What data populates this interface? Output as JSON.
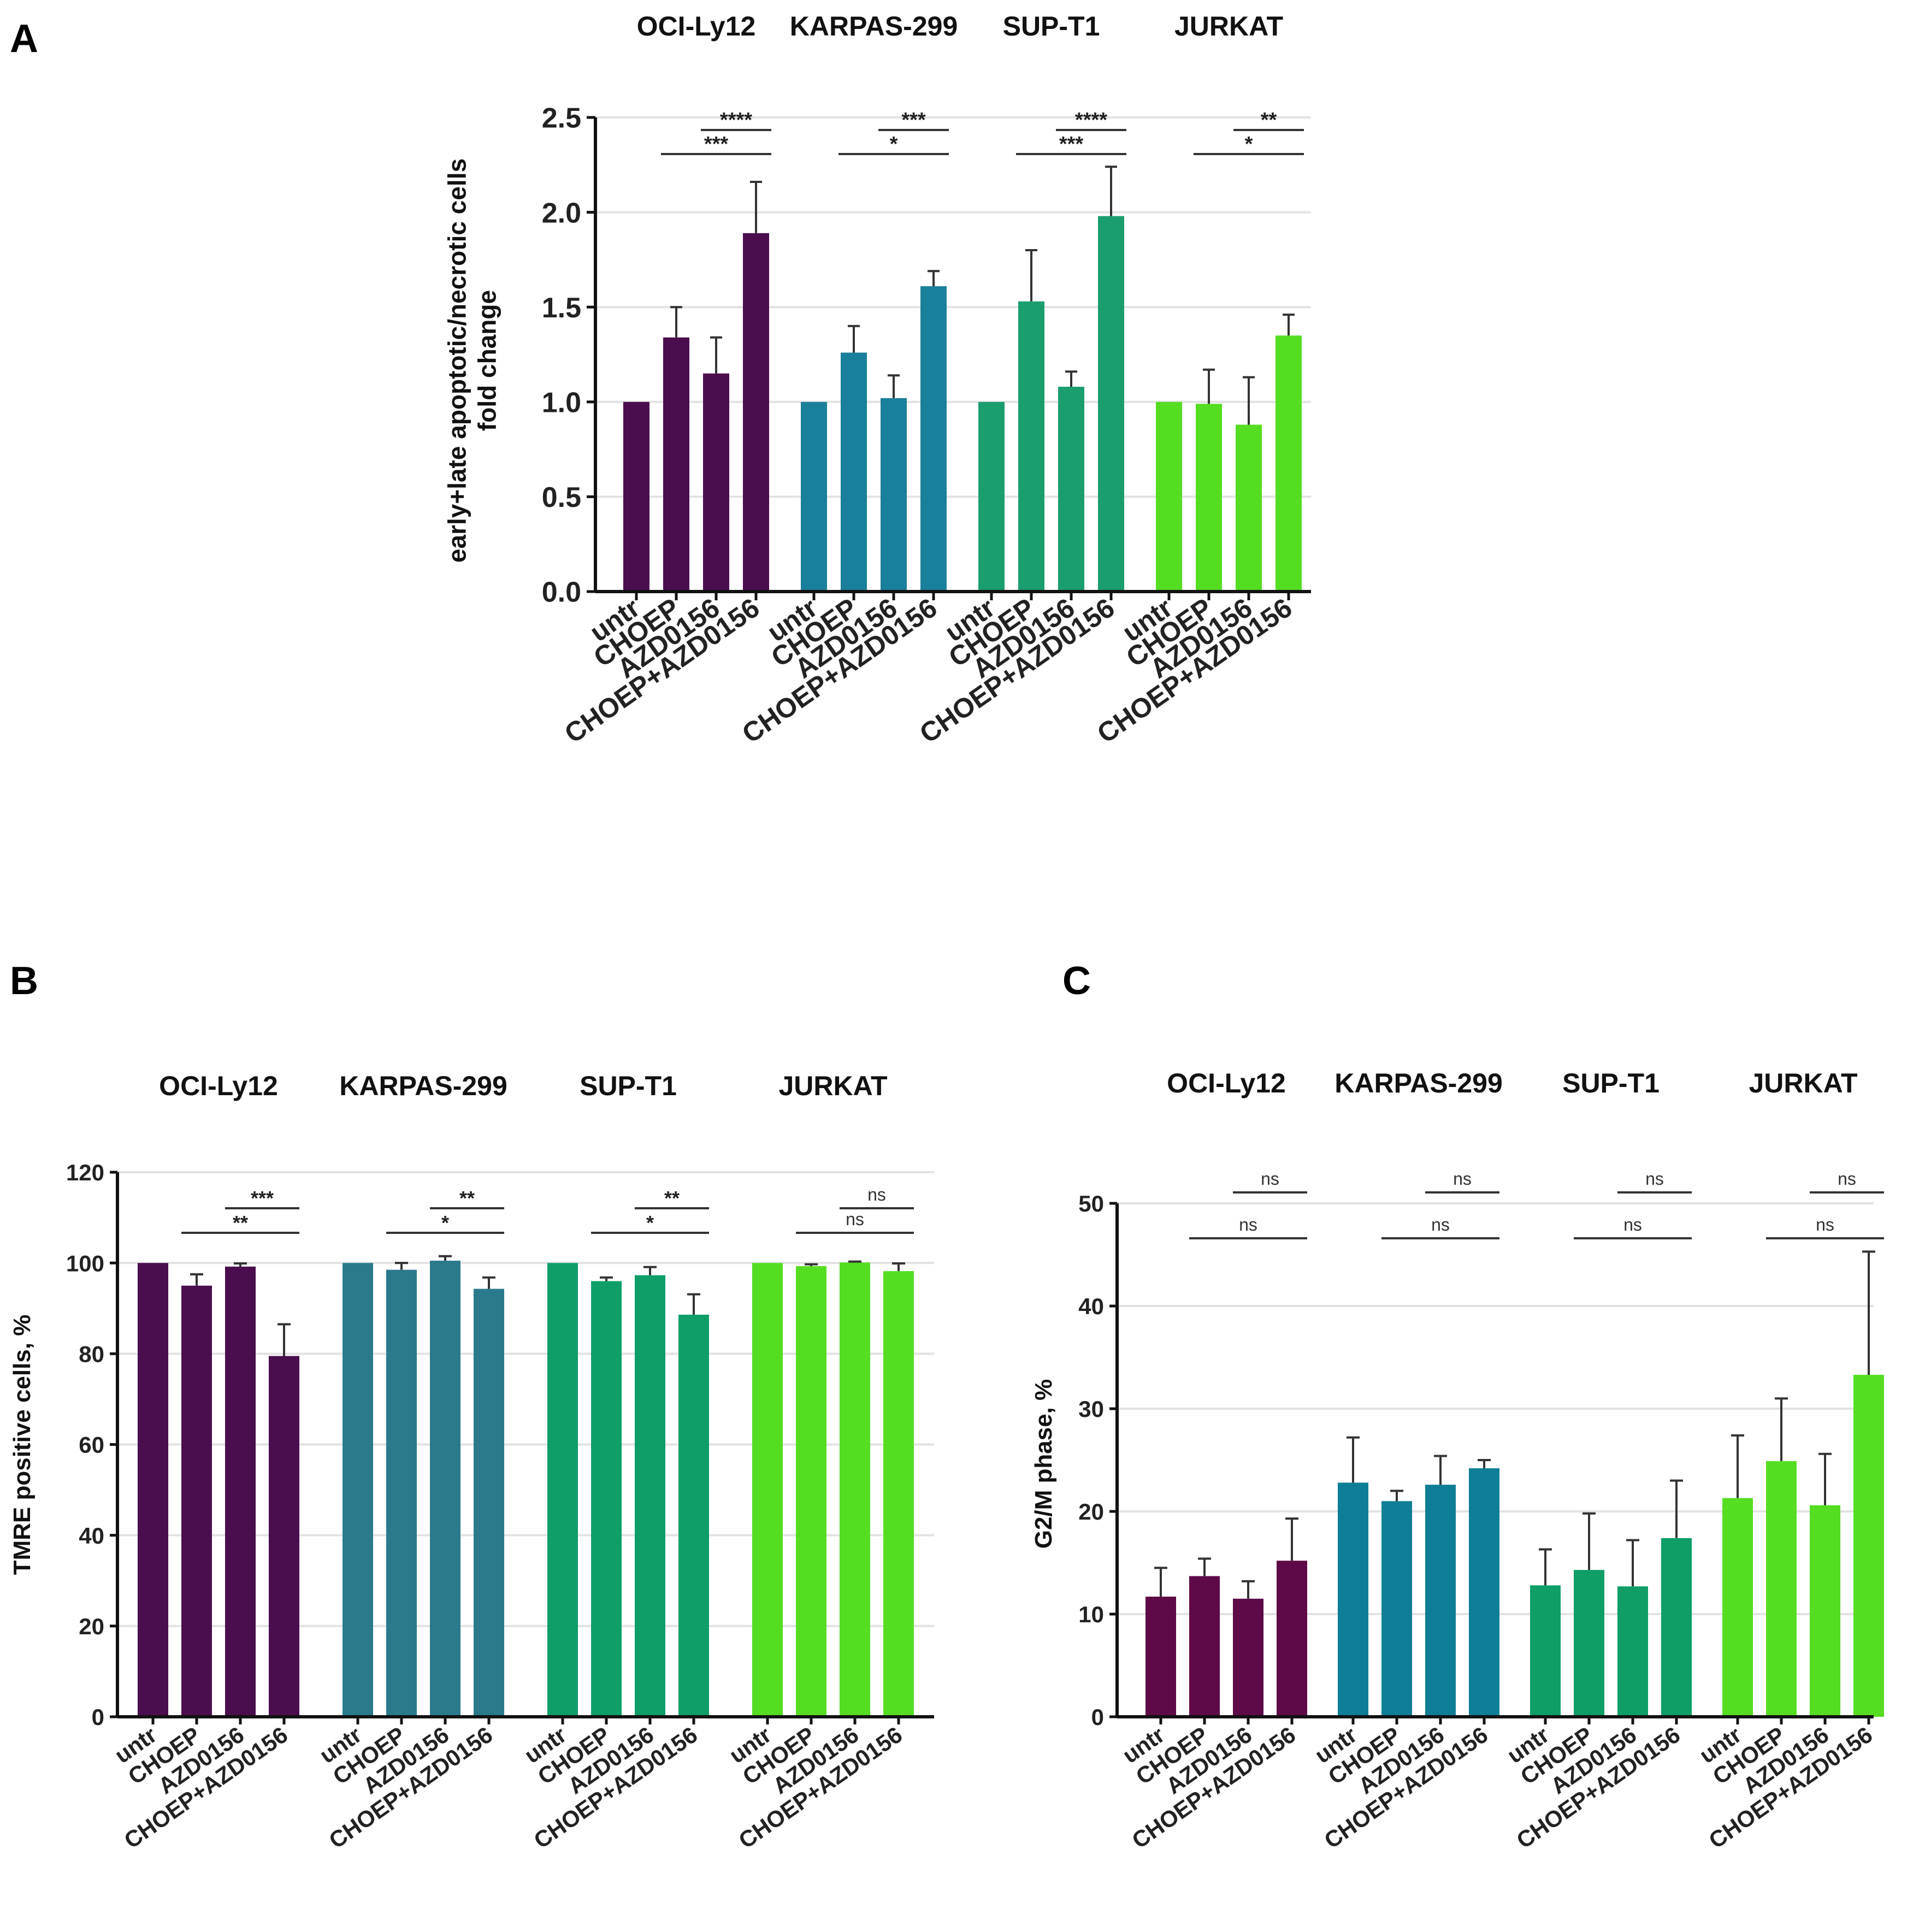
{
  "chart_data": [
    {
      "panel": "A",
      "type": "bar",
      "title": "",
      "ylabel": "early+late apoptotic/necrotic cells fold change",
      "ylabel_lines": [
        "early+late apoptotic/necrotic cells",
        "fold change"
      ],
      "ylim": [
        0,
        2.5
      ],
      "yticks": [
        "0.0",
        "0.5",
        "1.0",
        "1.5",
        "2.0",
        "2.5"
      ],
      "grid": true,
      "groups": [
        {
          "name": "OCI-Ly12",
          "color": "#4a0e4e",
          "categories": [
            "untr",
            "CHOEP",
            "AZD0156",
            "CHOEP+AZD0156"
          ],
          "values": [
            1.0,
            1.34,
            1.15,
            1.89
          ],
          "errors": [
            0,
            0.16,
            0.19,
            0.27
          ],
          "brackets": [
            {
              "from": 2,
              "to": 3,
              "label": "****"
            },
            {
              "from": 1,
              "to": 3,
              "label": "***"
            }
          ]
        },
        {
          "name": "KARPAS-299",
          "color": "#1a7f9a",
          "categories": [
            "untr",
            "CHOEP",
            "AZD0156",
            "CHOEP+AZD0156"
          ],
          "values": [
            1.0,
            1.26,
            1.02,
            1.61
          ],
          "errors": [
            0,
            0.14,
            0.12,
            0.08
          ],
          "brackets": [
            {
              "from": 2,
              "to": 3,
              "label": "***"
            },
            {
              "from": 1,
              "to": 3,
              "label": "*"
            }
          ]
        },
        {
          "name": "SUP-T1",
          "color": "#1a9e6e",
          "categories": [
            "untr",
            "CHOEP",
            "AZD0156",
            "CHOEP+AZD0156"
          ],
          "values": [
            1.0,
            1.53,
            1.08,
            1.98
          ],
          "errors": [
            0,
            0.27,
            0.08,
            0.26
          ],
          "brackets": [
            {
              "from": 2,
              "to": 3,
              "label": "****"
            },
            {
              "from": 1,
              "to": 3,
              "label": "***"
            }
          ]
        },
        {
          "name": "JURKAT",
          "color": "#55dd22",
          "categories": [
            "untr",
            "CHOEP",
            "AZD0156",
            "CHOEP+AZD0156"
          ],
          "values": [
            1.0,
            0.99,
            0.88,
            1.35
          ],
          "errors": [
            0,
            0.18,
            0.25,
            0.11
          ],
          "brackets": [
            {
              "from": 2,
              "to": 3,
              "label": "**"
            },
            {
              "from": 1,
              "to": 3,
              "label": "*"
            }
          ]
        }
      ]
    },
    {
      "panel": "B",
      "type": "bar",
      "title": "",
      "ylabel": "TMRE positive cells, %",
      "ylabel_lines": [
        "TMRE positive cells, %"
      ],
      "ylim": [
        0,
        120
      ],
      "yticks": [
        "0",
        "20",
        "40",
        "60",
        "80",
        "100",
        "120"
      ],
      "grid": true,
      "groups": [
        {
          "name": "OCI-Ly12",
          "color": "#4a0e4e",
          "categories": [
            "untr",
            "CHOEP",
            "AZD0156",
            "CHOEP+AZD0156"
          ],
          "values": [
            100,
            95,
            99.2,
            79.5
          ],
          "errors": [
            0,
            2.5,
            0.7,
            7
          ],
          "brackets": [
            {
              "from": 2,
              "to": 3,
              "label": "***"
            },
            {
              "from": 1,
              "to": 3,
              "label": "**"
            }
          ]
        },
        {
          "name": "KARPAS-299",
          "color": "#2a7a8c",
          "categories": [
            "untr",
            "CHOEP",
            "AZD0156",
            "CHOEP+AZD0156"
          ],
          "values": [
            100,
            98.5,
            100.5,
            94.3
          ],
          "errors": [
            0,
            1.5,
            1,
            2.5
          ],
          "brackets": [
            {
              "from": 2,
              "to": 3,
              "label": "**"
            },
            {
              "from": 1,
              "to": 3,
              "label": "*"
            }
          ]
        },
        {
          "name": "SUP-T1",
          "color": "#0e9e68",
          "categories": [
            "untr",
            "CHOEP",
            "AZD0156",
            "CHOEP+AZD0156"
          ],
          "values": [
            100,
            96,
            97.3,
            88.6
          ],
          "errors": [
            0,
            0.8,
            1.8,
            4.5
          ],
          "brackets": [
            {
              "from": 2,
              "to": 3,
              "label": "**"
            },
            {
              "from": 1,
              "to": 3,
              "label": "*"
            }
          ]
        },
        {
          "name": "JURKAT",
          "color": "#55dd22",
          "categories": [
            "untr",
            "CHOEP",
            "AZD0156",
            "CHOEP+AZD0156"
          ],
          "values": [
            100,
            99.3,
            100.1,
            98.2
          ],
          "errors": [
            0,
            0.4,
            0.2,
            1.7
          ],
          "brackets": [
            {
              "from": 2,
              "to": 3,
              "label": "ns"
            },
            {
              "from": 1,
              "to": 3,
              "label": "ns"
            }
          ]
        }
      ]
    },
    {
      "panel": "C",
      "type": "bar",
      "title": "",
      "ylabel": "G2/M phase, %",
      "ylabel_lines": [
        "G2/M phase, %"
      ],
      "ylim": [
        0,
        50
      ],
      "yticks": [
        "0",
        "10",
        "20",
        "30",
        "40",
        "50"
      ],
      "grid": true,
      "groups": [
        {
          "name": "OCI-Ly12",
          "color": "#5e0a48",
          "categories": [
            "untr",
            "CHOEP",
            "AZD0156",
            "CHOEP+AZD0156"
          ],
          "values": [
            11.7,
            13.7,
            11.5,
            15.2
          ],
          "errors": [
            2.8,
            1.7,
            1.7,
            4.1
          ],
          "brackets": [
            {
              "from": 2,
              "to": 3,
              "label": "ns"
            },
            {
              "from": 1,
              "to": 3,
              "label": "ns"
            }
          ]
        },
        {
          "name": "KARPAS-299",
          "color": "#0e7e96",
          "categories": [
            "untr",
            "CHOEP",
            "AZD0156",
            "CHOEP+AZD0156"
          ],
          "values": [
            22.8,
            21,
            22.6,
            24.2
          ],
          "errors": [
            4.4,
            1,
            2.8,
            0.8
          ],
          "brackets": [
            {
              "from": 2,
              "to": 3,
              "label": "ns"
            },
            {
              "from": 1,
              "to": 3,
              "label": "ns"
            }
          ]
        },
        {
          "name": "SUP-T1",
          "color": "#0e9e66",
          "categories": [
            "untr",
            "CHOEP",
            "AZD0156",
            "CHOEP+AZD0156"
          ],
          "values": [
            12.8,
            14.3,
            12.7,
            17.4
          ],
          "errors": [
            3.5,
            5.5,
            4.5,
            5.6
          ],
          "brackets": [
            {
              "from": 2,
              "to": 3,
              "label": "ns"
            },
            {
              "from": 1,
              "to": 3,
              "label": "ns"
            }
          ]
        },
        {
          "name": "JURKAT",
          "color": "#55dd22",
          "categories": [
            "untr",
            "CHOEP",
            "AZD0156",
            "CHOEP+AZD0156"
          ],
          "values": [
            21.3,
            24.9,
            20.6,
            33.3
          ],
          "errors": [
            6.1,
            6.1,
            5,
            12
          ],
          "brackets": [
            {
              "from": 2,
              "to": 3,
              "label": "ns"
            },
            {
              "from": 1,
              "to": 3,
              "label": "ns"
            }
          ]
        }
      ]
    }
  ],
  "colors": {
    "axis": "#111111",
    "grid": "#e2e2e2",
    "bracket": "#333333"
  }
}
